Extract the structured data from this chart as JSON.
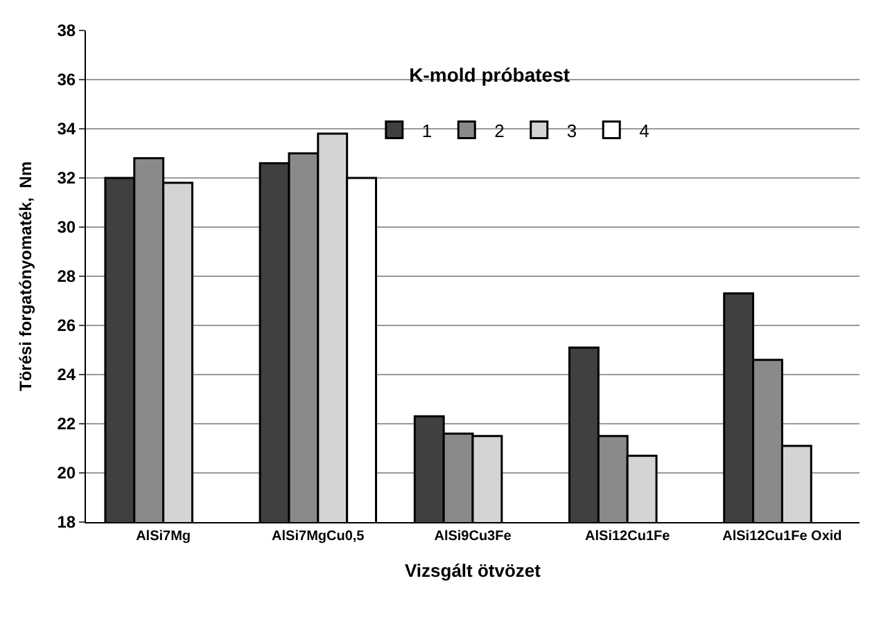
{
  "chart_data": {
    "type": "bar",
    "title": "K-mold próbatest",
    "xlabel": "Vizsgált ötvözet",
    "ylabel": "Törési forgatónyomaték,  Nm",
    "categories": [
      "AlSi7Mg",
      "AlSi7MgCu0,5",
      "AlSi9Cu3Fe",
      "AlSi12Cu1Fe",
      "AlSi12Cu1Fe Oxid"
    ],
    "series": [
      {
        "name": "1",
        "color": "#404040",
        "values": [
          32.0,
          32.6,
          22.3,
          25.1,
          27.3
        ]
      },
      {
        "name": "2",
        "color": "#8a8a8a",
        "values": [
          32.8,
          33.0,
          21.6,
          21.5,
          24.6
        ]
      },
      {
        "name": "3",
        "color": "#d4d4d4",
        "values": [
          31.8,
          33.8,
          21.5,
          20.7,
          21.1
        ]
      },
      {
        "name": "4",
        "color": "#ffffff",
        "values": [
          null,
          32.0,
          null,
          null,
          null
        ]
      }
    ],
    "ylim": [
      18,
      38
    ],
    "yticks": [
      18,
      20,
      22,
      24,
      26,
      28,
      30,
      32,
      34,
      36,
      38
    ],
    "grid": "y",
    "legend": "top"
  }
}
